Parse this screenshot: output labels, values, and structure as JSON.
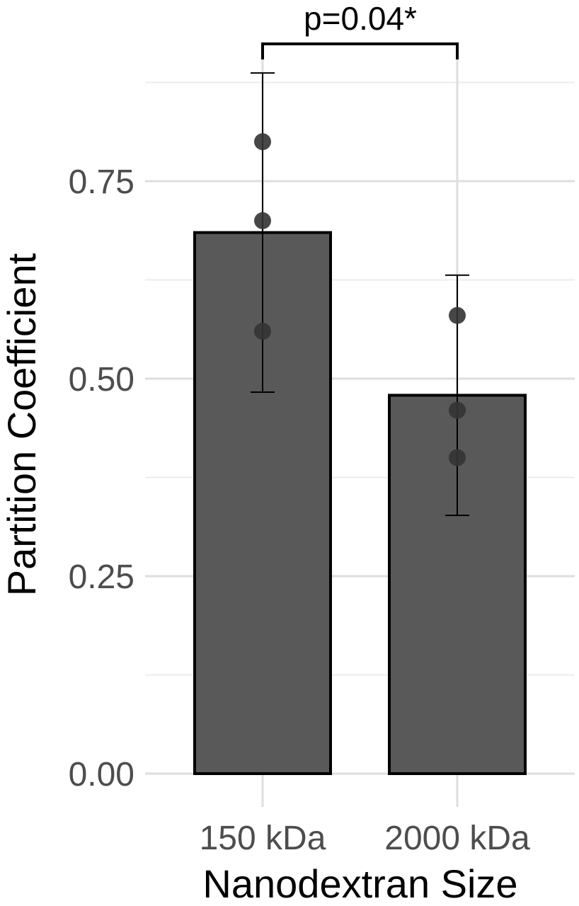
{
  "chart_data": {
    "type": "bar",
    "categories": [
      "150 kDa",
      "2000 kDa"
    ],
    "values": [
      0.685,
      0.479
    ],
    "error_bars": [
      {
        "low": 0.483,
        "high": 0.887
      },
      {
        "low": 0.327,
        "high": 0.631
      }
    ],
    "points": [
      [
        0.8,
        0.7,
        0.56
      ],
      [
        0.58,
        0.46,
        0.4
      ]
    ],
    "xlabel": "Nanodextran Size",
    "ylabel": "Partition Coefficient",
    "ylim": [
      0,
      0.9
    ],
    "yticks": [
      0.0,
      0.25,
      0.5,
      0.75
    ],
    "ytick_labels": [
      "0.00",
      "0.25",
      "0.50",
      "0.75"
    ],
    "grid": true,
    "annotation": {
      "text": "p=0.04*",
      "bracket_value": 0.92,
      "from": "150 kDa",
      "to": "2000 kDa"
    },
    "colors": {
      "bar_fill": "#595959",
      "bar_stroke": "#000000",
      "point": "#333333",
      "grid_major": "#dedede",
      "grid_minor": "#ececec"
    }
  }
}
